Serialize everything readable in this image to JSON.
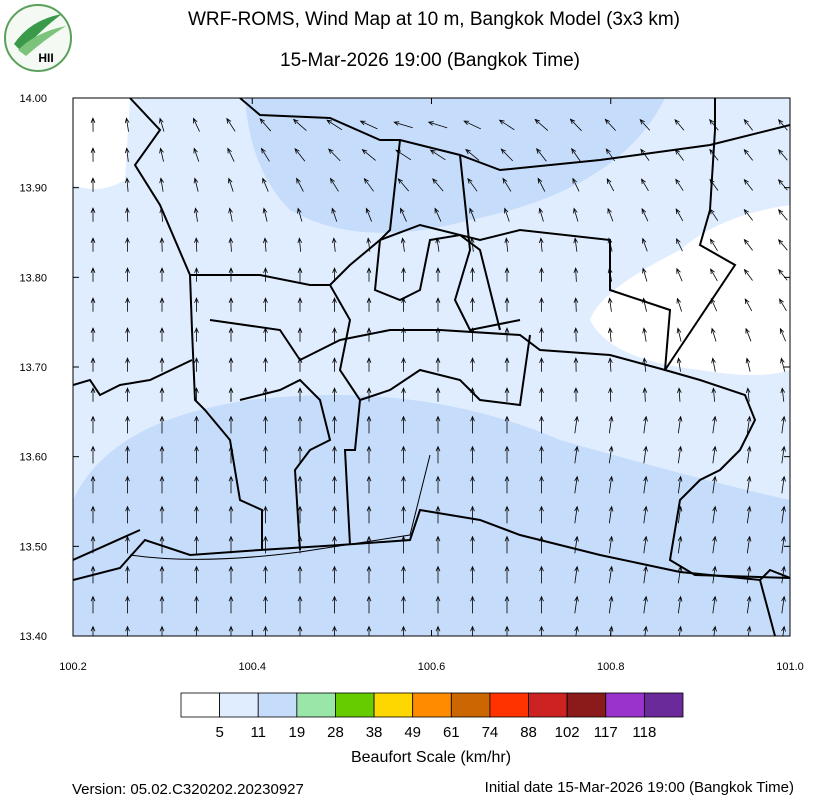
{
  "header": {
    "title": "WRF-ROMS, Wind Map at 10 m, Bangkok Model (3x3 km)",
    "subtitle": "15-Mar-2026 19:00 (Bangkok Time)",
    "logo_text": "HII"
  },
  "map": {
    "xlim": [
      100.2,
      101.0
    ],
    "ylim": [
      13.4,
      14.0
    ],
    "xticks": [
      100.2,
      100.4,
      100.6,
      100.8,
      {
        "value": 101.0,
        "label": "101.0"
      }
    ],
    "yticks": [
      {
        "value": 13.4,
        "label": "13.40"
      },
      {
        "value": 13.5,
        "label": "13.50"
      },
      {
        "value": 13.6,
        "label": "13.60"
      },
      {
        "value": 13.7,
        "label": "13.70"
      },
      {
        "value": 13.8,
        "label": "13.80"
      },
      {
        "value": 13.9,
        "label": "13.90"
      },
      {
        "value": 14.0,
        "label": "14.00"
      }
    ]
  },
  "colorbar": {
    "title": "Beaufort Scale (km/hr)",
    "colors": [
      "#ffffff",
      "#e0edff",
      "#c6dcfb",
      "#99e6a8",
      "#66cc00",
      "#ffd700",
      "#ff8c00",
      "#cc6600",
      "#ff3300",
      "#cc2222",
      "#8b1a1a",
      "#9933cc",
      "#6a2a9a"
    ],
    "labels": [
      5,
      11,
      19,
      28,
      38,
      49,
      61,
      74,
      88,
      102,
      117,
      118
    ]
  },
  "footer": {
    "version": "Version: 05.02.C320202.20230927",
    "initial_date": "Initial date 15-Mar-2026 19:00 (Bangkok Time)"
  }
}
